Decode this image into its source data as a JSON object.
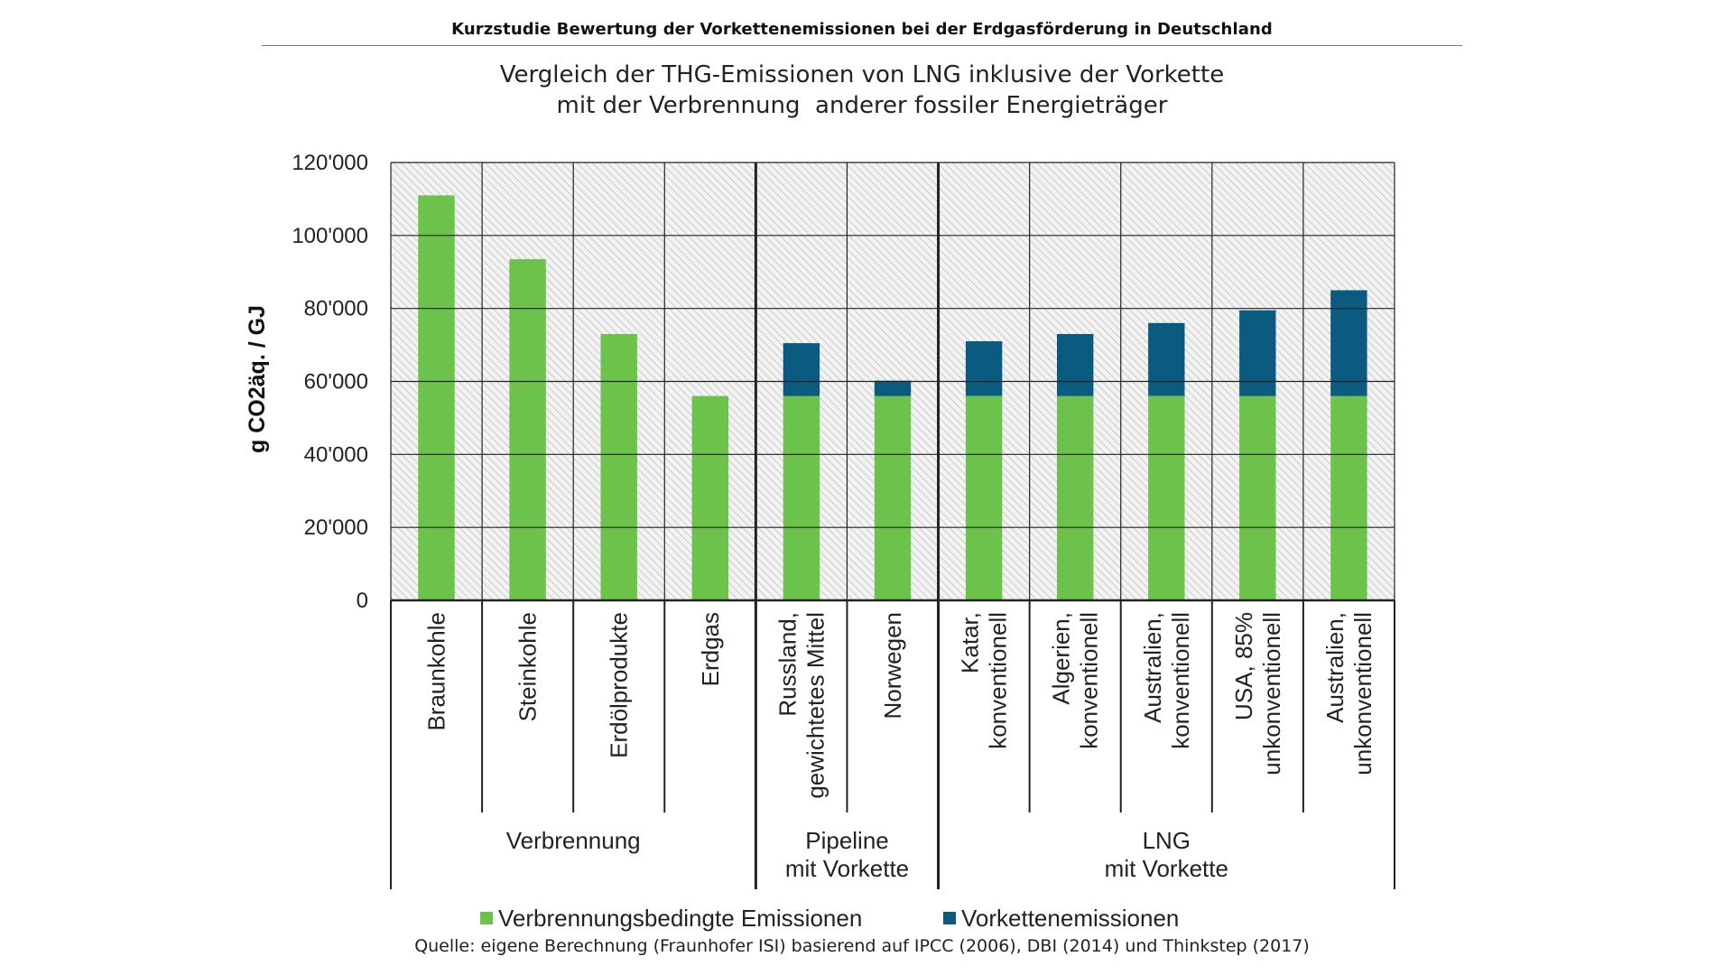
{
  "header": {
    "text": "Kurzstudie Bewertung der Vorkettenemissionen bei der Erdgasförderung in Deutschland"
  },
  "source": "Quelle: eigene Berechnung (Fraunhofer ISI) basierend auf IPCC (2006), DBI (2014) und Thinkstep (2017)",
  "colors": {
    "combustion": "#6cc24a",
    "upstream": "#0b5a80",
    "grid": "#222222",
    "hatch": "#c8c8c8"
  },
  "chart_data": {
    "type": "bar",
    "stacked": true,
    "title": "Vergleich der THG-Emissionen von LNG inklusive der Vorkette\nmit der Verbrennung  anderer fossiler Energieträger",
    "ylabel": "g CO2äq. / GJ",
    "ylim": [
      0,
      120000
    ],
    "yticks": [
      0,
      20000,
      40000,
      60000,
      80000,
      100000,
      120000
    ],
    "ytick_labels": [
      "0",
      "20'000",
      "40'000",
      "60'000",
      "80'000",
      "100'000",
      "120'000"
    ],
    "grid": true,
    "legend_position": "bottom",
    "categories": [
      "Braunkohle",
      "Steinkohle",
      "Erdölprodukte",
      "Erdgas",
      "Russland,\ngewichtetes Mittel",
      "Norwegen",
      "Katar,\nkonventionell",
      "Algerien,\nkonventionell",
      "Australien,\nkonventionell",
      "USA, 85%\nunkonventionell",
      "Australien,\nunkonventionell"
    ],
    "groups": [
      {
        "label": "Verbrennung",
        "categories": 4
      },
      {
        "label": "Pipeline\nmit Vorkette",
        "categories": 2
      },
      {
        "label": "LNG\nmit Vorkette",
        "categories": 5
      }
    ],
    "series": [
      {
        "name": "Verbrennungsbedingte Emissionen",
        "color": "#6cc24a",
        "values": [
          111000,
          93500,
          73000,
          56000,
          56000,
          56000,
          56000,
          56000,
          56000,
          56000,
          56000
        ]
      },
      {
        "name": "Vorkettenemissionen",
        "color": "#0b5a80",
        "values": [
          0,
          0,
          0,
          0,
          14500,
          4200,
          15000,
          17000,
          20000,
          23500,
          29000
        ]
      }
    ]
  }
}
